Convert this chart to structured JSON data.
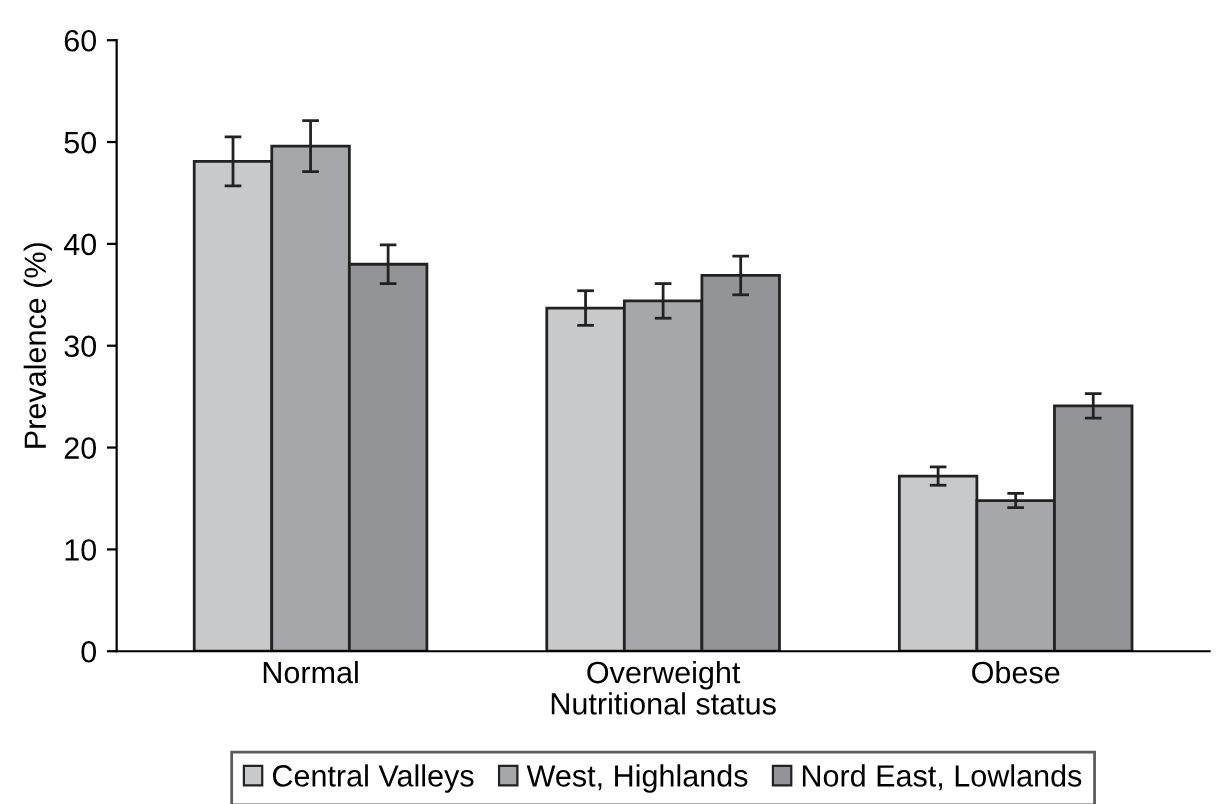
{
  "chart_data": {
    "type": "bar",
    "xlabel": "Nutritional status",
    "ylabel": "Prevalence (%)",
    "categories": [
      "Normal",
      "Overweight",
      "Obese"
    ],
    "series": [
      {
        "name": "Central Valleys",
        "color": "#c8c9cb",
        "values": [
          48.1,
          33.7,
          17.2
        ],
        "errors": [
          2.4,
          1.7,
          0.9
        ]
      },
      {
        "name": "West, Highlands",
        "color": "#a6a7aa",
        "values": [
          49.6,
          34.4,
          14.8
        ],
        "errors": [
          2.5,
          1.7,
          0.7
        ]
      },
      {
        "name": "Nord East, Lowlands",
        "color": "#939497",
        "values": [
          38.0,
          36.9,
          24.1
        ],
        "errors": [
          1.9,
          1.9,
          1.2
        ]
      }
    ],
    "ylim": [
      0,
      60
    ],
    "yticks": [
      0,
      10,
      20,
      30,
      40,
      50,
      60
    ],
    "grid": false,
    "legend": "bottom"
  }
}
